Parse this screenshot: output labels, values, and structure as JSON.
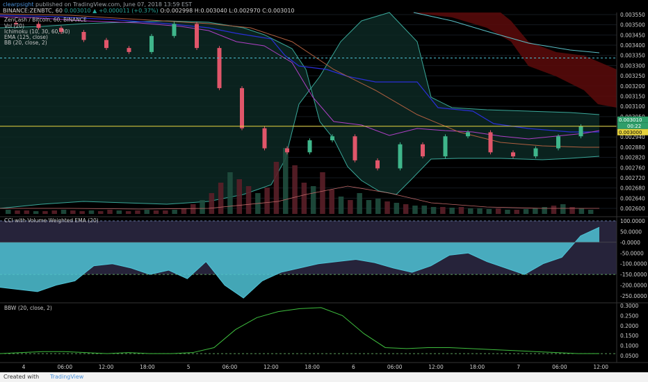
{
  "header": {
    "author": "clearpsight",
    "published": "published on TradingView.com, June 07, 2018 13:59 EST",
    "symbol": "BINANCE:ZENBTC, 60",
    "last": "0.003010",
    "change": "▲ +0.000011 (+0.37%)",
    "ohlc": "O:0.002998 H:0.003040 L:0.002970 C:0.003010"
  },
  "legend": {
    "title": "ZenCash / Bitcoin, 60, BINANCE",
    "vol": "Vol (20)",
    "ichimoku": "Ichimoku (10, 30, 60, 30)",
    "ema": "EMA (125, close)",
    "bb": "BB (20, close, 2)"
  },
  "cci_title": "CCI with Volume Weighted EMA (20)",
  "bbw_title": "BBW (20, close, 2)",
  "price_badges": {
    "current": "0.003010",
    "countdown": "00:22",
    "level": "0.003000"
  },
  "footer": {
    "created": "Created with",
    "brand": "TradingView"
  },
  "chart_data": [
    {
      "type": "candlestick",
      "title": "ZenCash / Bitcoin, 60, BINANCE",
      "y_ticks": [
        "0.003550",
        "0.003500",
        "0.003450",
        "0.003400",
        "0.003350",
        "0.003300",
        "0.003250",
        "0.003200",
        "0.003150",
        "0.003100",
        "0.003050",
        "0.003010",
        "0.002940",
        "0.002880",
        "0.002820",
        "0.002760",
        "0.002720",
        "0.002680",
        "0.002640",
        "0.002600"
      ],
      "x_ticks": [
        "4",
        "06:00",
        "12:00",
        "18:00",
        "5",
        "06:00",
        "12:00",
        "18:00",
        "6",
        "06:00",
        "12:00",
        "18:00",
        "7",
        "06:00",
        "12:00"
      ],
      "close_approx": [
        0.00352,
        0.0035,
        0.00348,
        0.00344,
        0.0034,
        0.00338,
        0.00346,
        0.00352,
        0.0034,
        0.0032,
        0.003,
        0.0029,
        0.00288,
        0.00294,
        0.00296,
        0.00284,
        0.0028,
        0.00292,
        0.00286,
        0.00296,
        0.00298,
        0.00288,
        0.00286,
        0.0029,
        0.00296,
        0.00301
      ],
      "horizontal_levels": [
        0.00335,
        0.00301
      ],
      "volume_spikes": [
        60,
        75,
        95,
        70,
        45,
        30,
        20
      ]
    },
    {
      "type": "line",
      "title": "CCI with Volume Weighted EMA (20)",
      "y_ticks": [
        "100.0000",
        "50.0000",
        "-0.0000",
        "-50.0000",
        "-100.0000",
        "-150.0000",
        "-200.0000",
        "-250.0000"
      ],
      "levels": [
        100,
        -150
      ],
      "values_approx": [
        -210,
        -220,
        -230,
        -200,
        -180,
        -110,
        -100,
        -120,
        -150,
        -130,
        -170,
        -90,
        -200,
        -260,
        -180,
        -140,
        -120,
        -100,
        -90,
        -80,
        -95,
        -120,
        -140,
        -110,
        -60,
        -50,
        -90,
        -120,
        -150,
        -100,
        -70,
        30,
        70
      ]
    },
    {
      "type": "line",
      "title": "BBW (20, close, 2)",
      "y_ticks": [
        "0.3000",
        "0.2500",
        "0.2000",
        "0.1500",
        "0.1000",
        "0.0500"
      ],
      "values_approx": [
        0.06,
        0.065,
        0.07,
        0.07,
        0.065,
        0.06,
        0.065,
        0.06,
        0.06,
        0.065,
        0.09,
        0.18,
        0.24,
        0.27,
        0.285,
        0.29,
        0.25,
        0.16,
        0.09,
        0.085,
        0.09,
        0.09,
        0.085,
        0.08,
        0.075,
        0.07,
        0.065,
        0.06,
        0.06
      ],
      "baseline": 0.06
    }
  ]
}
